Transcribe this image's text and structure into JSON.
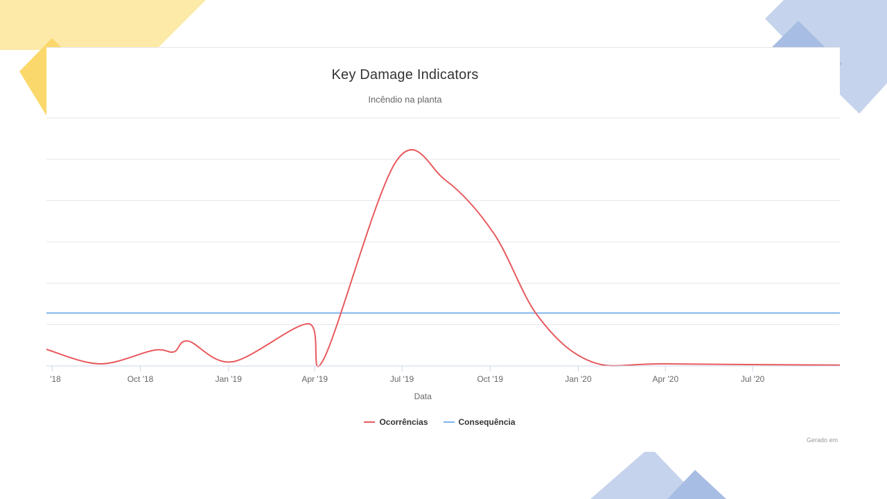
{
  "colors": {
    "deco_yellow": "#fde9a8",
    "deco_yellow_dark": "#fbd86c",
    "deco_blue": "#c5d3ec",
    "deco_blue_dark": "#a8bde3",
    "gridline": "#e6e6e6",
    "axis_line": "#ccd6eb"
  },
  "chart_data": {
    "type": "line",
    "title": "Key Damage Indicators",
    "subtitle": "Incêndio na planta",
    "xlabel": "Data",
    "ylabel": "",
    "x_type": "datetime",
    "x_range": [
      "2018-06-25",
      "2020-09-30"
    ],
    "x_ticks": [
      {
        "date": "2018-07-01",
        "label": "'18"
      },
      {
        "date": "2018-10-01",
        "label": "Oct '18"
      },
      {
        "date": "2019-01-01",
        "label": "Jan '19"
      },
      {
        "date": "2019-04-01",
        "label": "Apr '19"
      },
      {
        "date": "2019-07-01",
        "label": "Jul '19"
      },
      {
        "date": "2019-10-01",
        "label": "Oct '19"
      },
      {
        "date": "2020-01-01",
        "label": "Jan '20"
      },
      {
        "date": "2020-04-01",
        "label": "Apr '20"
      },
      {
        "date": "2020-07-01",
        "label": "Jul '20"
      }
    ],
    "ylim": [
      0,
      6
    ],
    "y_gridlines": [
      0,
      1,
      2,
      3,
      4,
      5,
      6
    ],
    "y_tick_labels_visible": false,
    "grid": true,
    "legend": "bottom-center",
    "series": [
      {
        "name": "Ocorrências",
        "color": "#e8595d",
        "smooth": true,
        "points": [
          {
            "x": "2018-06-25",
            "y": 0.4
          },
          {
            "x": "2018-08-20",
            "y": 0.05
          },
          {
            "x": "2018-10-15",
            "y": 0.38
          },
          {
            "x": "2018-11-05",
            "y": 0.34
          },
          {
            "x": "2018-11-20",
            "y": 0.6
          },
          {
            "x": "2019-01-05",
            "y": 0.1
          },
          {
            "x": "2019-03-25",
            "y": 1.02
          },
          {
            "x": "2019-04-10",
            "y": 0.15
          },
          {
            "x": "2019-06-25",
            "y": 4.95
          },
          {
            "x": "2019-08-15",
            "y": 4.5
          },
          {
            "x": "2019-10-05",
            "y": 3.2
          },
          {
            "x": "2019-11-20",
            "y": 1.2
          },
          {
            "x": "2020-01-15",
            "y": 0.1
          },
          {
            "x": "2020-04-01",
            "y": 0.05
          },
          {
            "x": "2020-09-30",
            "y": 0.02
          }
        ]
      },
      {
        "name": "Consequência",
        "color": "#7cb5ec",
        "smooth": false,
        "points": [
          {
            "x": "2018-06-25",
            "y": 1.28
          },
          {
            "x": "2020-09-30",
            "y": 1.28
          }
        ]
      }
    ]
  },
  "credits": "Gerado em"
}
